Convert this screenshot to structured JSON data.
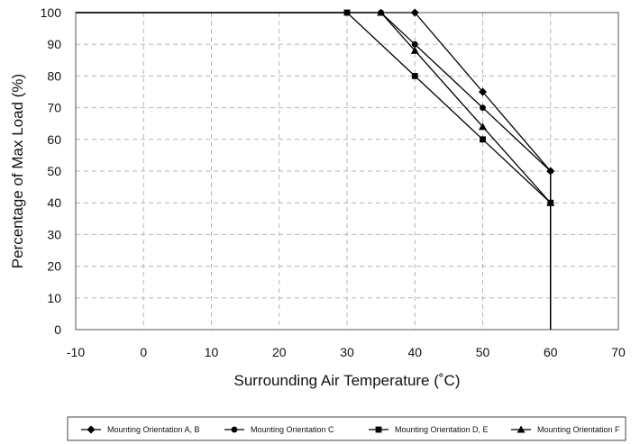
{
  "chart_data": {
    "type": "line",
    "title": "",
    "xlabel": "Surrounding Air Temperature (˚C)",
    "ylabel": "Percentage of Max Load (%)",
    "xlim": [
      -10,
      70
    ],
    "ylim": [
      0,
      100
    ],
    "x_ticks": [
      -10,
      0,
      10,
      20,
      30,
      40,
      50,
      60,
      70
    ],
    "y_ticks": [
      0,
      10,
      20,
      30,
      40,
      50,
      60,
      70,
      80,
      90,
      100
    ],
    "x_tick_labels": [
      "-10",
      "0",
      "10",
      "20",
      "30",
      "40",
      "50",
      "60",
      "70"
    ],
    "y_tick_labels": [
      "0",
      "10",
      "20",
      "30",
      "40",
      "50",
      "60",
      "70",
      "80",
      "90",
      "100"
    ],
    "grid": true,
    "legend_position": "bottom",
    "series": [
      {
        "name": "Mounting Orientation A, B",
        "marker": "diamond",
        "x": [
          -10,
          40,
          50,
          60,
          60
        ],
        "y": [
          100,
          100,
          75,
          50,
          0
        ]
      },
      {
        "name": "Mounting Orientation C",
        "marker": "circle",
        "x": [
          -10,
          35,
          40,
          50,
          60,
          60
        ],
        "y": [
          100,
          100,
          90,
          70,
          50,
          0
        ]
      },
      {
        "name": "Mounting Orientation D, E",
        "marker": "square",
        "x": [
          -10,
          30,
          40,
          50,
          60,
          60
        ],
        "y": [
          100,
          100,
          80,
          60,
          40,
          0
        ]
      },
      {
        "name": "Mounting Orientation F",
        "marker": "triangle",
        "x": [
          -10,
          35,
          40,
          50,
          60,
          60
        ],
        "y": [
          100,
          100,
          88,
          64,
          40,
          0
        ]
      }
    ]
  }
}
